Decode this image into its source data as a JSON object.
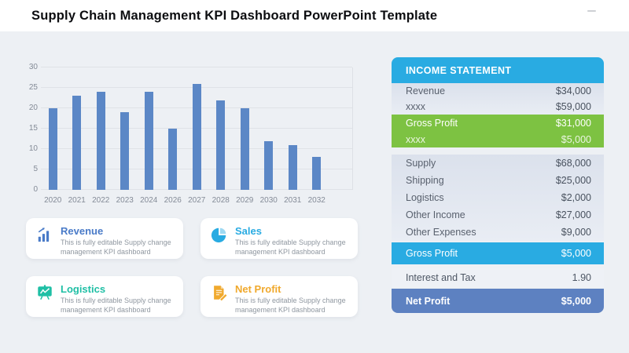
{
  "header": {
    "title": "Supply Chain Management KPI Dashboard PowerPoint Template"
  },
  "chart_data": {
    "type": "bar",
    "categories": [
      "2020",
      "2021",
      "2022",
      "2023",
      "2024",
      "2026",
      "2027",
      "2028",
      "2029",
      "2030",
      "2031",
      "2032"
    ],
    "values": [
      20,
      23,
      24,
      19,
      24,
      15,
      26,
      22,
      20,
      12,
      11,
      8
    ],
    "title": "",
    "xlabel": "",
    "ylabel": "",
    "ylim": [
      0,
      30
    ],
    "yticks": [
      0,
      5,
      10,
      15,
      20,
      25,
      30
    ],
    "grid": true,
    "legend": false,
    "bar_color": "#5b87c6"
  },
  "cards": [
    {
      "title": "Revenue",
      "description": "This is fully editable Supply change management KPI dashboard",
      "accent_color": "#4a7bc8",
      "icon": "bar-chart-arrow-icon"
    },
    {
      "title": "Sales",
      "description": "This is fully editable Supply change management KPI dashboard",
      "accent_color": "#29abe2",
      "icon": "pie-chart-icon"
    },
    {
      "title": "Logistics",
      "description": "This is fully editable Supply change management KPI dashboard",
      "accent_color": "#1fbfa5",
      "icon": "presentation-chart-icon"
    },
    {
      "title": "Net Profit",
      "description": "This is fully editable Supply change management KPI dashboard",
      "accent_color": "#f0a92d",
      "icon": "document-pencil-icon"
    }
  ],
  "income_statement": {
    "title": "INCOME STATEMENT",
    "header_color": "#29abe2",
    "sections": [
      {
        "highlight": "none",
        "rows": [
          {
            "label": "Revenue",
            "value": "$34,000"
          },
          {
            "label": "xxxx",
            "value": "$59,000"
          }
        ]
      },
      {
        "highlight": "green",
        "color": "#7dc242",
        "rows": [
          {
            "label": "Gross Profit",
            "value": "$31,000"
          },
          {
            "label": "xxxx",
            "value": "$5,000"
          }
        ]
      },
      {
        "highlight": "none",
        "rows": [
          {
            "label": "Supply",
            "value": "$68,000"
          },
          {
            "label": "Shipping",
            "value": "$25,000"
          },
          {
            "label": "Logistics",
            "value": "$2,000"
          },
          {
            "label": "Other Income",
            "value": "$27,000"
          },
          {
            "label": "Other Expenses",
            "value": "$9,000"
          }
        ]
      },
      {
        "highlight": "cyan",
        "color": "#29abe2",
        "rows": [
          {
            "label": "Gross Profit",
            "value": "$5,000"
          }
        ]
      },
      {
        "highlight": "muted",
        "rows": [
          {
            "label": "Interest and Tax",
            "value": "1.90"
          }
        ]
      },
      {
        "highlight": "blue",
        "color": "#5d81c1",
        "rows": [
          {
            "label": "Net Profit",
            "value": "$5,000"
          }
        ]
      }
    ]
  }
}
